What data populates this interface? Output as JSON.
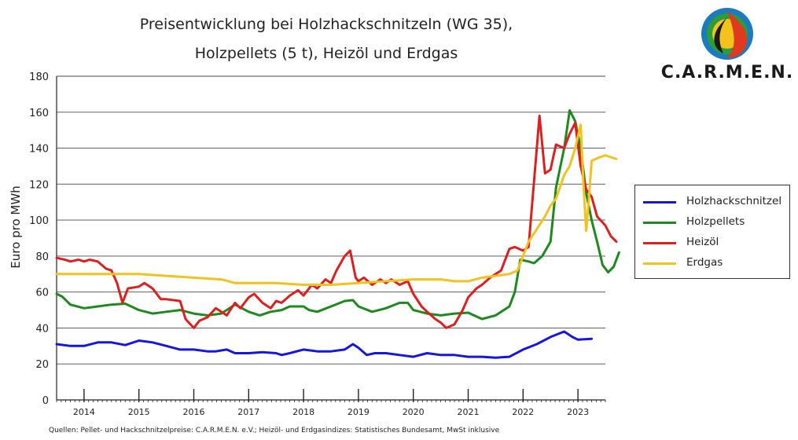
{
  "logo": {
    "text": "C.A.R.M.E.N."
  },
  "source_note": "Quellen: Pellet- und Hackschnitzelpreise: C.A.R.M.E.N. e.V.; Heizöl- und Erdgasindizes: Statistisches Bundesamt, MwSt inklusive",
  "chart_data": {
    "type": "line",
    "title_line1": "Preisentwicklung bei Holzhackschnitzeln (WG 35),",
    "title_line2": "Holzpellets (5 t), Heizöl und Erdgas",
    "ylabel": "Euro pro MWh",
    "xlabel": "",
    "ylim": [
      0,
      180
    ],
    "yticks": [
      0,
      20,
      40,
      60,
      80,
      100,
      120,
      140,
      160,
      180
    ],
    "xlim": [
      2013.5,
      2023.5
    ],
    "year_labels": [
      "2014",
      "2015",
      "2016",
      "2017",
      "2018",
      "2019",
      "2020",
      "2021",
      "2022",
      "2023"
    ],
    "grid": "horizontal",
    "legend_position": "right",
    "series": [
      {
        "name": "Holzhackschnitzel",
        "color": "#1515e6",
        "points": [
          [
            2013.5,
            31
          ],
          [
            2013.75,
            30
          ],
          [
            2014.0,
            30
          ],
          [
            2014.25,
            32
          ],
          [
            2014.5,
            32
          ],
          [
            2014.75,
            30.5
          ],
          [
            2015.0,
            33
          ],
          [
            2015.25,
            32
          ],
          [
            2015.5,
            30
          ],
          [
            2015.75,
            28
          ],
          [
            2016.0,
            28
          ],
          [
            2016.25,
            27
          ],
          [
            2016.4,
            27
          ],
          [
            2016.6,
            28
          ],
          [
            2016.75,
            26
          ],
          [
            2017.0,
            26
          ],
          [
            2017.25,
            26.5
          ],
          [
            2017.5,
            26
          ],
          [
            2017.6,
            25
          ],
          [
            2017.75,
            26
          ],
          [
            2018.0,
            28
          ],
          [
            2018.25,
            27
          ],
          [
            2018.5,
            27
          ],
          [
            2018.75,
            28
          ],
          [
            2018.9,
            31
          ],
          [
            2019.0,
            29
          ],
          [
            2019.15,
            25
          ],
          [
            2019.3,
            26
          ],
          [
            2019.5,
            26
          ],
          [
            2019.75,
            25
          ],
          [
            2020.0,
            24
          ],
          [
            2020.25,
            26
          ],
          [
            2020.5,
            25
          ],
          [
            2020.75,
            25
          ],
          [
            2021.0,
            24
          ],
          [
            2021.25,
            24
          ],
          [
            2021.5,
            23.5
          ],
          [
            2021.75,
            24
          ],
          [
            2022.0,
            28
          ],
          [
            2022.25,
            31
          ],
          [
            2022.5,
            35
          ],
          [
            2022.75,
            38
          ],
          [
            2022.9,
            35
          ],
          [
            2023.0,
            33.5
          ],
          [
            2023.25,
            34
          ]
        ]
      },
      {
        "name": "Holzpellets",
        "color": "#1d8a1d",
        "points": [
          [
            2013.5,
            59
          ],
          [
            2013.6,
            57.5
          ],
          [
            2013.75,
            53
          ],
          [
            2014.0,
            51
          ],
          [
            2014.25,
            52
          ],
          [
            2014.5,
            53
          ],
          [
            2014.75,
            53.5
          ],
          [
            2015.0,
            50
          ],
          [
            2015.25,
            48
          ],
          [
            2015.5,
            49
          ],
          [
            2015.75,
            50
          ],
          [
            2016.0,
            48
          ],
          [
            2016.25,
            47
          ],
          [
            2016.5,
            48
          ],
          [
            2016.75,
            53
          ],
          [
            2017.0,
            49
          ],
          [
            2017.2,
            47
          ],
          [
            2017.4,
            49
          ],
          [
            2017.6,
            50
          ],
          [
            2017.75,
            52
          ],
          [
            2018.0,
            52
          ],
          [
            2018.1,
            50
          ],
          [
            2018.25,
            49
          ],
          [
            2018.5,
            52
          ],
          [
            2018.75,
            55
          ],
          [
            2018.9,
            55.5
          ],
          [
            2019.0,
            52
          ],
          [
            2019.25,
            49
          ],
          [
            2019.5,
            51
          ],
          [
            2019.75,
            54
          ],
          [
            2019.9,
            54
          ],
          [
            2020.0,
            50
          ],
          [
            2020.25,
            48
          ],
          [
            2020.5,
            47
          ],
          [
            2020.75,
            48
          ],
          [
            2021.0,
            48.5
          ],
          [
            2021.25,
            45
          ],
          [
            2021.5,
            47
          ],
          [
            2021.75,
            52
          ],
          [
            2021.85,
            60
          ],
          [
            2021.95,
            78
          ],
          [
            2022.1,
            77
          ],
          [
            2022.2,
            76
          ],
          [
            2022.35,
            80
          ],
          [
            2022.5,
            88
          ],
          [
            2022.6,
            118
          ],
          [
            2022.75,
            140
          ],
          [
            2022.85,
            161
          ],
          [
            2022.95,
            155
          ],
          [
            2023.05,
            140
          ],
          [
            2023.15,
            115
          ],
          [
            2023.25,
            100
          ],
          [
            2023.35,
            88
          ],
          [
            2023.45,
            75
          ],
          [
            2023.55,
            71
          ],
          [
            2023.65,
            74
          ],
          [
            2023.75,
            82
          ]
        ]
      },
      {
        "name": "Heizöl",
        "color": "#e01e1e",
        "points": [
          [
            2013.5,
            79
          ],
          [
            2013.65,
            78
          ],
          [
            2013.75,
            77
          ],
          [
            2013.9,
            78
          ],
          [
            2014.0,
            77
          ],
          [
            2014.1,
            78
          ],
          [
            2014.25,
            77
          ],
          [
            2014.4,
            73
          ],
          [
            2014.5,
            72
          ],
          [
            2014.6,
            65
          ],
          [
            2014.7,
            54
          ],
          [
            2014.8,
            62
          ],
          [
            2015.0,
            63
          ],
          [
            2015.1,
            65
          ],
          [
            2015.25,
            62
          ],
          [
            2015.4,
            56
          ],
          [
            2015.5,
            56
          ],
          [
            2015.75,
            55
          ],
          [
            2015.85,
            45
          ],
          [
            2016.0,
            40
          ],
          [
            2016.1,
            44
          ],
          [
            2016.25,
            46
          ],
          [
            2016.4,
            51
          ],
          [
            2016.5,
            49
          ],
          [
            2016.6,
            47
          ],
          [
            2016.75,
            54
          ],
          [
            2016.85,
            51
          ],
          [
            2017.0,
            57
          ],
          [
            2017.1,
            59
          ],
          [
            2017.25,
            54
          ],
          [
            2017.4,
            51
          ],
          [
            2017.5,
            55
          ],
          [
            2017.6,
            54
          ],
          [
            2017.75,
            58
          ],
          [
            2017.9,
            61
          ],
          [
            2018.0,
            58
          ],
          [
            2018.15,
            64
          ],
          [
            2018.25,
            62
          ],
          [
            2018.4,
            67
          ],
          [
            2018.5,
            65
          ],
          [
            2018.6,
            72
          ],
          [
            2018.75,
            80
          ],
          [
            2018.85,
            83
          ],
          [
            2018.95,
            68
          ],
          [
            2019.0,
            66
          ],
          [
            2019.1,
            68
          ],
          [
            2019.25,
            64
          ],
          [
            2019.4,
            67
          ],
          [
            2019.5,
            65
          ],
          [
            2019.6,
            67
          ],
          [
            2019.75,
            64
          ],
          [
            2019.9,
            66
          ],
          [
            2020.0,
            59
          ],
          [
            2020.15,
            52
          ],
          [
            2020.25,
            49
          ],
          [
            2020.4,
            45
          ],
          [
            2020.5,
            43
          ],
          [
            2020.6,
            40
          ],
          [
            2020.75,
            42
          ],
          [
            2020.9,
            50
          ],
          [
            2021.0,
            57
          ],
          [
            2021.15,
            62
          ],
          [
            2021.25,
            64
          ],
          [
            2021.4,
            68
          ],
          [
            2021.5,
            70
          ],
          [
            2021.6,
            72
          ],
          [
            2021.75,
            84
          ],
          [
            2021.85,
            85
          ],
          [
            2022.0,
            83
          ],
          [
            2022.1,
            85
          ],
          [
            2022.3,
            158
          ],
          [
            2022.4,
            126
          ],
          [
            2022.5,
            128
          ],
          [
            2022.6,
            142
          ],
          [
            2022.75,
            140
          ],
          [
            2022.85,
            148
          ],
          [
            2022.95,
            154
          ],
          [
            2023.05,
            130
          ],
          [
            2023.15,
            117
          ],
          [
            2023.25,
            113
          ],
          [
            2023.35,
            102
          ],
          [
            2023.5,
            97
          ],
          [
            2023.6,
            91
          ],
          [
            2023.7,
            88
          ]
        ]
      },
      {
        "name": "Erdgas",
        "color": "#f2c21d",
        "points": [
          [
            2013.5,
            70
          ],
          [
            2014.0,
            70
          ],
          [
            2014.5,
            70
          ],
          [
            2015.0,
            70
          ],
          [
            2015.5,
            69
          ],
          [
            2016.0,
            68
          ],
          [
            2016.5,
            67
          ],
          [
            2016.75,
            65
          ],
          [
            2017.0,
            65
          ],
          [
            2017.5,
            65
          ],
          [
            2018.0,
            64
          ],
          [
            2018.5,
            64
          ],
          [
            2019.0,
            65
          ],
          [
            2019.5,
            66
          ],
          [
            2020.0,
            67
          ],
          [
            2020.5,
            67
          ],
          [
            2020.75,
            66
          ],
          [
            2021.0,
            66
          ],
          [
            2021.25,
            68
          ],
          [
            2021.5,
            69
          ],
          [
            2021.75,
            70
          ],
          [
            2021.9,
            72
          ],
          [
            2022.0,
            80
          ],
          [
            2022.1,
            88
          ],
          [
            2022.25,
            95
          ],
          [
            2022.4,
            102
          ],
          [
            2022.5,
            108
          ],
          [
            2022.6,
            112
          ],
          [
            2022.75,
            125
          ],
          [
            2022.85,
            130
          ],
          [
            2022.95,
            140
          ],
          [
            2023.05,
            153
          ],
          [
            2023.1,
            120
          ],
          [
            2023.15,
            94
          ],
          [
            2023.2,
            112
          ],
          [
            2023.25,
            133
          ],
          [
            2023.4,
            135
          ],
          [
            2023.5,
            136
          ],
          [
            2023.6,
            135
          ],
          [
            2023.7,
            134
          ]
        ]
      }
    ]
  }
}
